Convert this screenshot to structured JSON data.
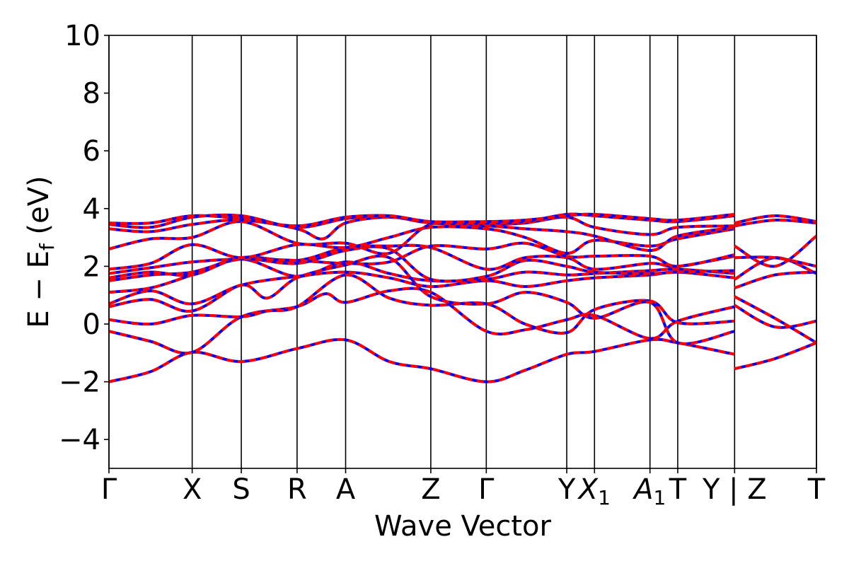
{
  "chart_data": {
    "type": "line",
    "title": "",
    "xlabel": "Wave Vector",
    "ylabel": "E − E_f (eV)",
    "ylabel_parts": {
      "main": "E − E",
      "sub": "f",
      "unit": " (eV)"
    },
    "ylim": [
      -5,
      10
    ],
    "yticks": [
      -4,
      -2,
      0,
      2,
      4,
      6,
      8,
      10
    ],
    "ytick_labels": [
      "−4",
      "−2",
      "0",
      "2",
      "4",
      "6",
      "8",
      "10"
    ],
    "grid": false,
    "legend": "none",
    "kpath": {
      "x_range": [
        0,
        25.5
      ],
      "high_symmetry_x": [
        0,
        3.0,
        4.77,
        6.78,
        8.53,
        11.6,
        13.6,
        16.5,
        17.5,
        19.5,
        20.5,
        22.55,
        25.5
      ],
      "labels": [
        {
          "x": 0,
          "text": "Γ"
        },
        {
          "x": 3.0,
          "text": "X"
        },
        {
          "x": 4.77,
          "text": "S"
        },
        {
          "x": 6.78,
          "text": "R"
        },
        {
          "x": 8.53,
          "text": "A"
        },
        {
          "x": 11.6,
          "text": "Z"
        },
        {
          "x": 13.6,
          "text": "Γ"
        },
        {
          "x": 16.5,
          "text": "Y"
        },
        {
          "x": 17.5,
          "text": "X",
          "sub": "1",
          "italic": true
        },
        {
          "x": 19.5,
          "text": "A",
          "sub": "1",
          "italic": true
        },
        {
          "x": 20.5,
          "text": "T"
        },
        {
          "x": 22.55,
          "text": "Y | Z"
        },
        {
          "x": 25.5,
          "text": "T"
        }
      ]
    },
    "series": [
      {
        "values": [
          [
            0,
            -2.0
          ],
          [
            1.5,
            -1.65
          ],
          [
            3.0,
            -0.98
          ],
          [
            4.77,
            -1.3
          ],
          [
            6.78,
            -0.85
          ],
          [
            8.53,
            -0.55
          ],
          [
            10.1,
            -1.3
          ],
          [
            11.6,
            -1.55
          ],
          [
            13.6,
            -2.0
          ],
          [
            15.0,
            -1.6
          ],
          [
            16.5,
            -1.05
          ],
          [
            17.5,
            -0.95
          ],
          [
            19.5,
            -0.55
          ],
          [
            20.5,
            -0.65
          ],
          [
            22.55,
            -1.05
          ]
        ]
      },
      {
        "values": [
          [
            0,
            -0.25
          ],
          [
            1.5,
            -0.6
          ],
          [
            3.0,
            -0.98
          ],
          [
            4.77,
            0.25
          ],
          [
            6.78,
            0.6
          ],
          [
            7.8,
            1.05
          ],
          [
            8.53,
            0.75
          ],
          [
            10.1,
            1.15
          ],
          [
            11.6,
            1.1
          ],
          [
            13.6,
            -0.25
          ],
          [
            15.0,
            -0.2
          ],
          [
            16.5,
            0.15
          ],
          [
            17.5,
            0.3
          ],
          [
            19.5,
            -0.5
          ],
          [
            20.5,
            0.1
          ],
          [
            22.55,
            0.6
          ]
        ]
      },
      {
        "values": [
          [
            0,
            0.15
          ],
          [
            1.5,
            0.0
          ],
          [
            3.0,
            0.3
          ],
          [
            4.77,
            0.25
          ],
          [
            5.7,
            0.45
          ],
          [
            6.78,
            0.6
          ],
          [
            8.53,
            1.7
          ],
          [
            10.1,
            0.9
          ],
          [
            11.6,
            0.65
          ],
          [
            13.6,
            0.7
          ],
          [
            15.0,
            0.0
          ],
          [
            16.5,
            -0.3
          ],
          [
            17.5,
            0.5
          ],
          [
            19.5,
            0.8
          ],
          [
            20.5,
            0.05
          ],
          [
            22.55,
            0.1
          ]
        ]
      },
      {
        "values": [
          [
            0,
            0.6
          ],
          [
            1.5,
            0.85
          ],
          [
            3.0,
            0.45
          ],
          [
            4.77,
            1.35
          ],
          [
            5.7,
            0.9
          ],
          [
            6.78,
            1.6
          ],
          [
            8.53,
            2.05
          ],
          [
            10.1,
            2.3
          ],
          [
            11.6,
            0.95
          ],
          [
            13.6,
            0.7
          ],
          [
            15.0,
            1.1
          ],
          [
            16.5,
            0.75
          ],
          [
            17.5,
            0.2
          ],
          [
            19.5,
            0.75
          ],
          [
            20.5,
            -0.65
          ],
          [
            22.55,
            -0.25
          ]
        ]
      },
      {
        "values": [
          [
            0,
            0.7
          ],
          [
            1.5,
            1.15
          ],
          [
            3.0,
            0.7
          ],
          [
            4.77,
            1.35
          ],
          [
            6.78,
            1.65
          ],
          [
            8.53,
            1.8
          ],
          [
            10.1,
            1.6
          ],
          [
            11.6,
            1.3
          ],
          [
            13.6,
            1.5
          ],
          [
            15.0,
            1.3
          ],
          [
            16.5,
            1.5
          ],
          [
            17.5,
            1.6
          ],
          [
            19.5,
            1.7
          ],
          [
            20.5,
            1.8
          ],
          [
            22.55,
            1.6
          ]
        ]
      },
      {
        "values": [
          [
            0,
            1.1
          ],
          [
            1.5,
            1.25
          ],
          [
            3.0,
            1.7
          ],
          [
            4.77,
            2.25
          ],
          [
            6.78,
            1.65
          ],
          [
            8.53,
            2.15
          ],
          [
            10.1,
            1.75
          ],
          [
            11.6,
            1.5
          ],
          [
            13.6,
            1.55
          ],
          [
            15.0,
            1.8
          ],
          [
            16.5,
            1.7
          ],
          [
            17.5,
            1.75
          ],
          [
            19.5,
            1.85
          ],
          [
            20.5,
            1.9
          ],
          [
            22.55,
            1.75
          ]
        ]
      },
      {
        "values": [
          [
            0,
            1.5
          ],
          [
            1.5,
            1.7
          ],
          [
            3.0,
            1.8
          ],
          [
            4.77,
            2.25
          ],
          [
            6.78,
            2.1
          ],
          [
            8.53,
            2.55
          ],
          [
            10.1,
            2.6
          ],
          [
            11.6,
            1.55
          ],
          [
            13.6,
            1.65
          ],
          [
            15.0,
            2.2
          ],
          [
            16.5,
            2.0
          ],
          [
            17.5,
            1.8
          ],
          [
            19.5,
            1.75
          ],
          [
            20.5,
            1.8
          ],
          [
            22.55,
            1.85
          ]
        ]
      },
      {
        "values": [
          [
            0,
            1.6
          ],
          [
            1.5,
            1.8
          ],
          [
            3.0,
            1.7
          ],
          [
            4.77,
            2.3
          ],
          [
            6.78,
            2.2
          ],
          [
            8.53,
            2.65
          ],
          [
            10.1,
            2.7
          ],
          [
            11.6,
            2.65
          ],
          [
            13.6,
            1.9
          ],
          [
            15.0,
            2.3
          ],
          [
            16.5,
            2.3
          ],
          [
            17.5,
            1.9
          ],
          [
            19.5,
            2.1
          ],
          [
            20.5,
            2.0
          ],
          [
            22.55,
            2.35
          ]
        ]
      },
      {
        "values": [
          [
            0,
            1.75
          ],
          [
            1.5,
            1.95
          ],
          [
            3.0,
            2.15
          ],
          [
            4.77,
            2.25
          ],
          [
            6.78,
            2.2
          ],
          [
            8.53,
            2.1
          ],
          [
            10.1,
            2.15
          ],
          [
            11.6,
            2.7
          ],
          [
            13.6,
            2.6
          ],
          [
            15.0,
            2.8
          ],
          [
            16.5,
            2.35
          ],
          [
            17.5,
            2.35
          ],
          [
            19.5,
            2.35
          ],
          [
            20.5,
            2.0
          ],
          [
            22.55,
            2.4
          ]
        ]
      },
      {
        "values": [
          [
            0,
            1.9
          ],
          [
            1.5,
            2.1
          ],
          [
            3.0,
            2.75
          ],
          [
            4.77,
            2.3
          ],
          [
            6.78,
            2.75
          ],
          [
            8.53,
            2.65
          ],
          [
            10.1,
            3.0
          ],
          [
            11.6,
            3.35
          ],
          [
            13.6,
            3.3
          ],
          [
            15.0,
            3.0
          ],
          [
            16.5,
            2.45
          ],
          [
            17.5,
            2.9
          ],
          [
            19.5,
            2.7
          ],
          [
            20.5,
            2.95
          ],
          [
            22.55,
            3.3
          ]
        ]
      },
      {
        "values": [
          [
            0,
            2.6
          ],
          [
            1.5,
            2.95
          ],
          [
            3.0,
            3.0
          ],
          [
            4.77,
            3.55
          ],
          [
            6.78,
            2.8
          ],
          [
            8.53,
            2.8
          ],
          [
            10.1,
            2.45
          ],
          [
            11.6,
            3.45
          ],
          [
            13.6,
            3.4
          ],
          [
            15.0,
            3.3
          ],
          [
            16.5,
            3.2
          ],
          [
            17.5,
            3.05
          ],
          [
            19.5,
            2.55
          ],
          [
            20.5,
            3.05
          ],
          [
            22.55,
            3.35
          ]
        ]
      },
      {
        "values": [
          [
            0,
            3.3
          ],
          [
            1.5,
            3.2
          ],
          [
            3.0,
            3.45
          ],
          [
            4.77,
            3.6
          ],
          [
            6.78,
            3.3
          ],
          [
            7.7,
            2.95
          ],
          [
            8.53,
            3.5
          ],
          [
            10.1,
            3.7
          ],
          [
            11.6,
            3.5
          ],
          [
            13.6,
            3.45
          ],
          [
            15.0,
            3.5
          ],
          [
            16.5,
            3.7
          ],
          [
            17.5,
            3.35
          ],
          [
            19.5,
            3.1
          ],
          [
            20.5,
            3.35
          ],
          [
            22.55,
            3.4
          ]
        ]
      },
      {
        "values": [
          [
            0,
            3.45
          ],
          [
            1.5,
            3.35
          ],
          [
            3.0,
            3.7
          ],
          [
            4.77,
            3.75
          ],
          [
            6.78,
            3.35
          ],
          [
            8.53,
            3.65
          ],
          [
            10.1,
            3.75
          ],
          [
            11.6,
            3.5
          ],
          [
            13.6,
            3.5
          ],
          [
            15.0,
            3.55
          ],
          [
            16.5,
            3.8
          ],
          [
            17.5,
            3.75
          ],
          [
            19.5,
            3.6
          ],
          [
            20.5,
            3.55
          ],
          [
            22.55,
            3.75
          ]
        ]
      },
      {
        "values": [
          [
            0,
            3.5
          ],
          [
            1.5,
            3.5
          ],
          [
            3.0,
            3.75
          ],
          [
            4.77,
            3.65
          ],
          [
            6.78,
            3.4
          ],
          [
            8.53,
            3.7
          ],
          [
            10.1,
            3.75
          ],
          [
            11.6,
            3.55
          ],
          [
            13.6,
            3.55
          ],
          [
            15.0,
            3.6
          ],
          [
            16.5,
            3.75
          ],
          [
            17.5,
            3.8
          ],
          [
            19.5,
            3.65
          ],
          [
            20.5,
            3.6
          ],
          [
            22.55,
            3.8
          ]
        ]
      },
      {
        "values": [
          [
            22.55,
            -1.55
          ],
          [
            24.0,
            -1.2
          ],
          [
            25.5,
            -0.65
          ]
        ]
      },
      {
        "values": [
          [
            22.55,
            0.65
          ],
          [
            24.0,
            -0.1
          ],
          [
            25.5,
            0.1
          ]
        ]
      },
      {
        "values": [
          [
            22.55,
            0.95
          ],
          [
            24.0,
            0.2
          ],
          [
            25.5,
            -0.65
          ]
        ]
      },
      {
        "values": [
          [
            22.55,
            1.25
          ],
          [
            24.0,
            1.7
          ],
          [
            25.5,
            1.8
          ]
        ]
      },
      {
        "values": [
          [
            22.55,
            1.55
          ],
          [
            24.0,
            2.3
          ],
          [
            25.5,
            1.75
          ]
        ]
      },
      {
        "values": [
          [
            22.55,
            2.3
          ],
          [
            24.0,
            2.3
          ],
          [
            25.5,
            2.0
          ]
        ]
      },
      {
        "values": [
          [
            22.55,
            2.7
          ],
          [
            24.0,
            2.0
          ],
          [
            25.5,
            3.05
          ]
        ]
      },
      {
        "values": [
          [
            22.55,
            3.4
          ],
          [
            24.0,
            3.6
          ],
          [
            25.5,
            3.5
          ]
        ]
      },
      {
        "values": [
          [
            22.55,
            3.5
          ],
          [
            24.0,
            3.75
          ],
          [
            25.5,
            3.55
          ]
        ]
      }
    ],
    "colors": {
      "band_primary": "#ff0000",
      "band_secondary": "#0000ff",
      "axes": "#000000"
    }
  }
}
